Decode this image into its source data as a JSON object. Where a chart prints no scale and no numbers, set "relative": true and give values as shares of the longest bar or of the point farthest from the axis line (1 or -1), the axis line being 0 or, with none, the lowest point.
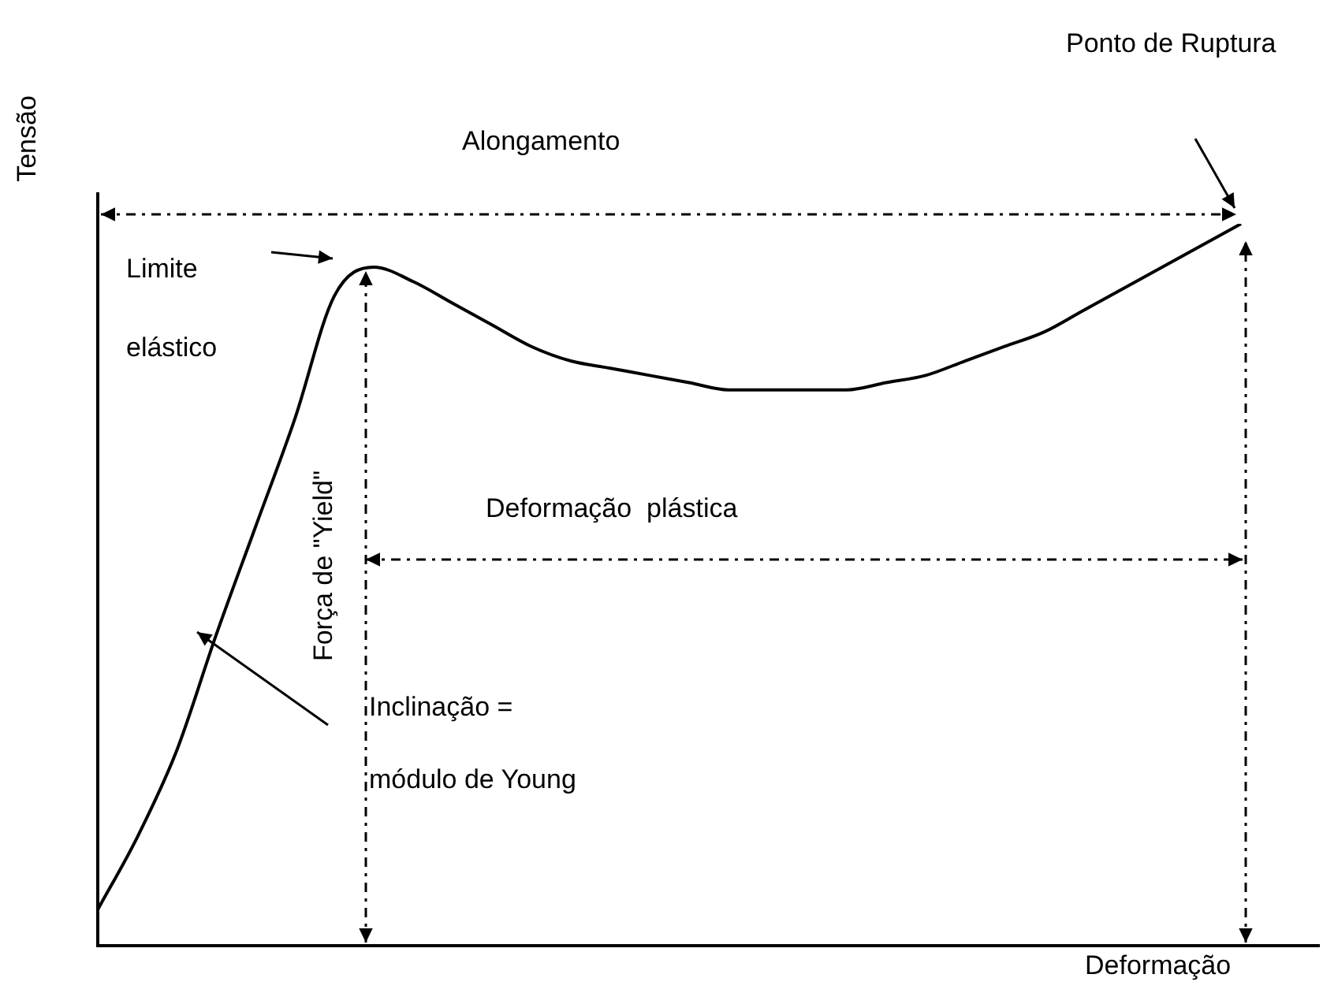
{
  "chart_data": {
    "type": "line",
    "relative": true,
    "xlabel": "Deformação",
    "ylabel": "Tensão",
    "annotations": [
      "Ponto de Ruptura",
      "Alongamento",
      "Limite elástico",
      "Força de \"Yield\"",
      "Deformação  plástica",
      "Inclinação = módulo de Young"
    ],
    "categories": [
      null,
      null,
      null,
      null,
      null,
      null,
      null,
      null,
      null,
      null,
      null,
      null,
      null,
      null,
      null,
      null,
      null,
      null,
      null,
      null,
      null,
      null,
      null,
      null,
      null,
      null,
      null,
      null,
      null,
      null,
      null,
      null
    ],
    "values": [
      0.05,
      0.15,
      0.27,
      0.43,
      0.58,
      0.73,
      0.9,
      0.94,
      0.92,
      0.89,
      0.86,
      0.83,
      0.81,
      0.8,
      0.79,
      0.78,
      0.77,
      0.77,
      0.77,
      0.77,
      0.78,
      0.79,
      0.81,
      0.83,
      0.85,
      0.88,
      0.91,
      0.94,
      0.97,
      1,
      null,
      null
    ],
    "color": "#000000",
    "marker": "none",
    "line_style": "solid"
  }
}
